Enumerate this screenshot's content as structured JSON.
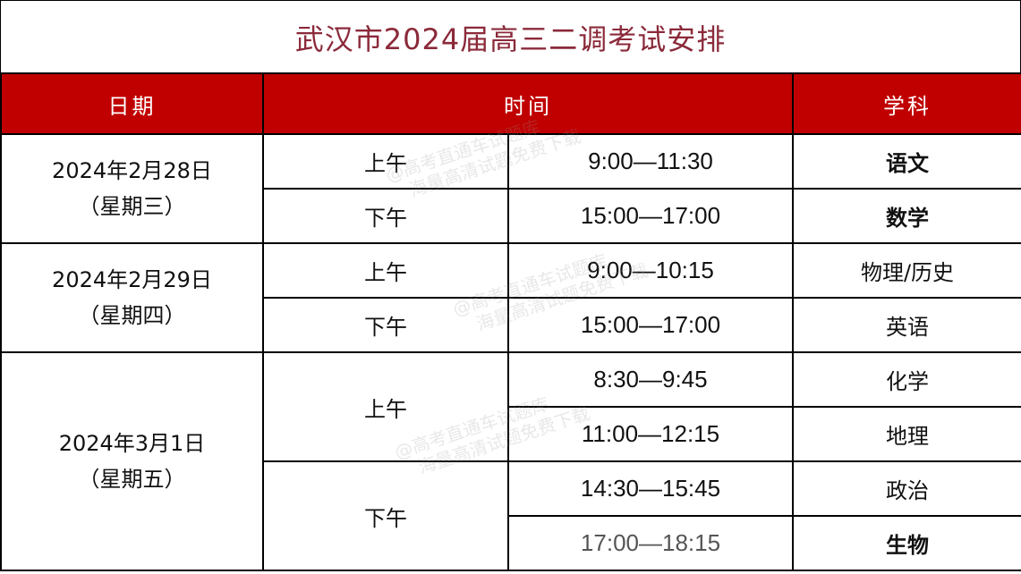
{
  "title": "武汉市2024届高三二调考试安排",
  "header": {
    "date": "日期",
    "time": "时间",
    "subject": "学科"
  },
  "days": [
    {
      "date": "2024年2月28日",
      "weekday": "（星期三）"
    },
    {
      "date": "2024年2月29日",
      "weekday": "（星期四）"
    },
    {
      "date": "2024年3月1日",
      "weekday": "（星期五）"
    }
  ],
  "periods": {
    "am": "上午",
    "pm": "下午"
  },
  "rows": [
    {
      "time": "9:00—11:30",
      "subject": "语文",
      "bold": true
    },
    {
      "time": "15:00—17:00",
      "subject": "数学",
      "bold": true
    },
    {
      "time": "9:00—10:15",
      "subject": "物理/历史",
      "bold": false
    },
    {
      "time": "15:00—17:00",
      "subject": "英语",
      "bold": false
    },
    {
      "time": "8:30—9:45",
      "subject": "化学",
      "bold": false
    },
    {
      "time": "11:00—12:15",
      "subject": "地理",
      "bold": false
    },
    {
      "time": "14:30—15:45",
      "subject": "政治",
      "bold": false
    },
    {
      "time": "17:00—18:15",
      "subject": "生物",
      "bold": true
    }
  ],
  "watermark": {
    "line1": "@高考直通车试题库",
    "line2": "海量高清试题免费下载"
  },
  "colors": {
    "header_bg": "#c00000",
    "title": "#8b2a3a"
  }
}
